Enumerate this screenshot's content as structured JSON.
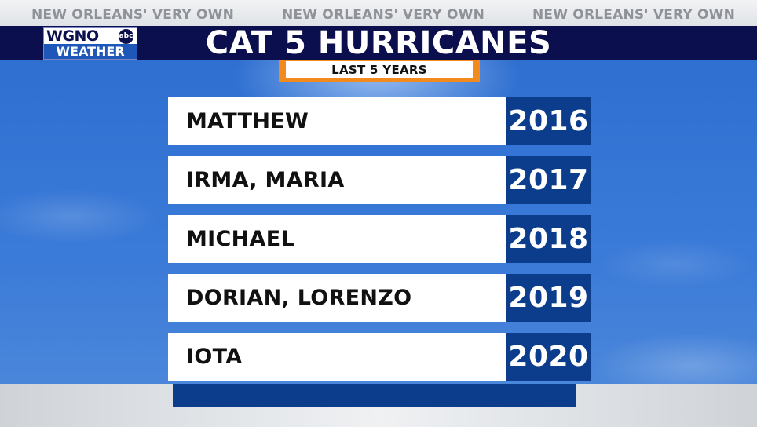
{
  "tagline": "NEW ORLEANS' VERY OWN",
  "logo": {
    "station": "WGNO",
    "network": "abc",
    "sub": "WEATHER"
  },
  "title": "CAT 5 HURRICANES",
  "subtitle": "LAST 5 YEARS",
  "rows": [
    {
      "name": "MATTHEW",
      "year": "2016"
    },
    {
      "name": "IRMA, MARIA",
      "year": "2017"
    },
    {
      "name": "MICHAEL",
      "year": "2018"
    },
    {
      "name": "DORIAN, LORENZO",
      "year": "2019"
    },
    {
      "name": "IOTA",
      "year": "2020"
    }
  ],
  "colors": {
    "navy": "#0c0f4e",
    "year_blue": "#0c3d8c",
    "sky_blue": "#3a7ad8",
    "orange": "#f28a1e"
  }
}
